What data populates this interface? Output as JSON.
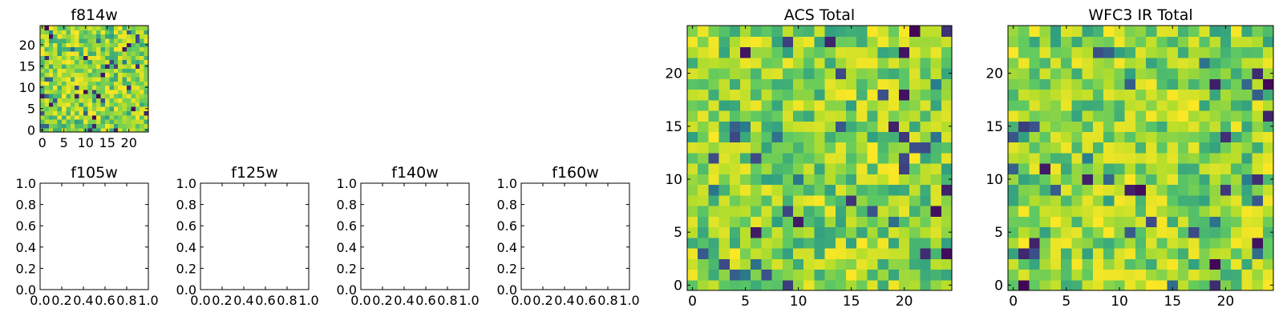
{
  "chart_data": [
    {
      "type": "heatmap",
      "title": "f814w",
      "rows": 25,
      "cols": 25,
      "colormap": "viridis",
      "x_ticks": [
        "0",
        "5",
        "10",
        "15",
        "20"
      ],
      "y_ticks": [
        "0",
        "5",
        "10",
        "15",
        "20"
      ],
      "seed": 11
    },
    {
      "type": "heatmap",
      "title": "f105w",
      "empty": true,
      "xlim": [
        0,
        1
      ],
      "ylim": [
        0,
        1
      ],
      "x_ticks": [
        "0.0",
        "0.2",
        "0.4",
        "0.6",
        "0.8",
        "1.0"
      ],
      "y_ticks": [
        "0.0",
        "0.2",
        "0.4",
        "0.6",
        "0.8",
        "1.0"
      ]
    },
    {
      "type": "heatmap",
      "title": "f125w",
      "empty": true,
      "xlim": [
        0,
        1
      ],
      "ylim": [
        0,
        1
      ],
      "x_ticks": [
        "0.0",
        "0.2",
        "0.4",
        "0.6",
        "0.8",
        "1.0"
      ],
      "y_ticks": [
        "0.0",
        "0.2",
        "0.4",
        "0.6",
        "0.8",
        "1.0"
      ]
    },
    {
      "type": "heatmap",
      "title": "f140w",
      "empty": true,
      "xlim": [
        0,
        1
      ],
      "ylim": [
        0,
        1
      ],
      "x_ticks": [
        "0.0",
        "0.2",
        "0.4",
        "0.6",
        "0.8",
        "1.0"
      ],
      "y_ticks": [
        "0.0",
        "0.2",
        "0.4",
        "0.6",
        "0.8",
        "1.0"
      ]
    },
    {
      "type": "heatmap",
      "title": "f160w",
      "empty": true,
      "xlim": [
        0,
        1
      ],
      "ylim": [
        0,
        1
      ],
      "x_ticks": [
        "0.0",
        "0.2",
        "0.4",
        "0.6",
        "0.8",
        "1.0"
      ],
      "y_ticks": [
        "0.0",
        "0.2",
        "0.4",
        "0.6",
        "0.8",
        "1.0"
      ]
    },
    {
      "type": "heatmap",
      "title": "ACS Total",
      "rows": 25,
      "cols": 25,
      "colormap": "viridis",
      "x_ticks": [
        "0",
        "5",
        "10",
        "15",
        "20"
      ],
      "y_ticks": [
        "0",
        "5",
        "10",
        "15",
        "20"
      ],
      "seed": 23
    },
    {
      "type": "heatmap",
      "title": "WFC3 IR Total",
      "rows": 25,
      "cols": 25,
      "colormap": "viridis",
      "x_ticks": [
        "0",
        "5",
        "10",
        "15",
        "20"
      ],
      "y_ticks": [
        "0",
        "5",
        "10",
        "15",
        "20"
      ],
      "seed": 37
    }
  ],
  "colors": {
    "viridis": [
      "#440154",
      "#3b528b",
      "#21918c",
      "#5ec962",
      "#b5de2b",
      "#fde725"
    ]
  }
}
